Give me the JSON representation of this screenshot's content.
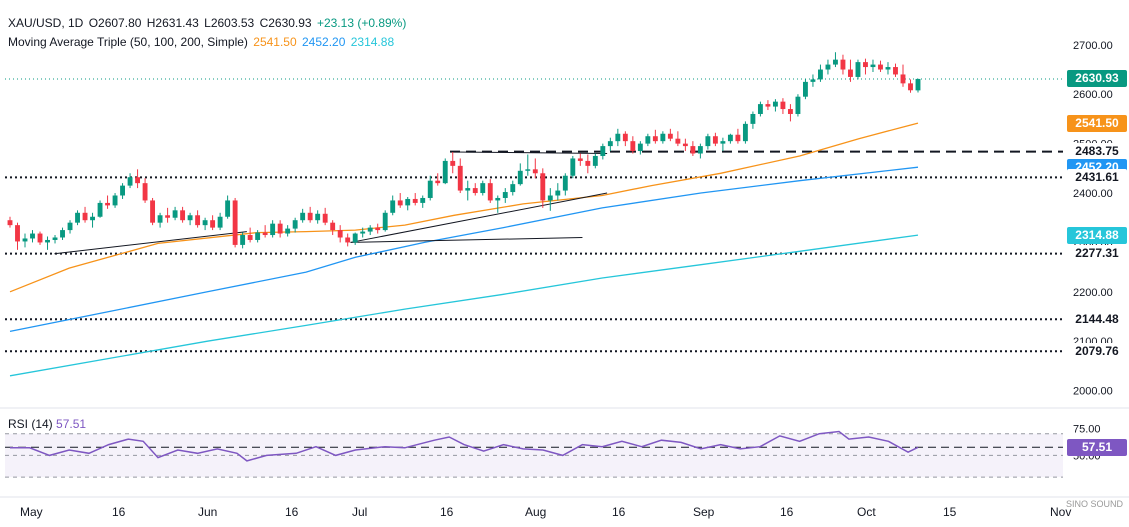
{
  "header": {
    "symbol": "XAU/USD, 1D",
    "open": "O2607.80",
    "high": "H2631.43",
    "low": "L2603.53",
    "close": "C2630.93",
    "change": "+23.13 (+0.89%)",
    "indicator": "Moving Average Triple (50, 100, 200, Simple)",
    "ma50": "2541.50",
    "ma100": "2452.20",
    "ma200": "2314.88"
  },
  "rsi": {
    "label": "RSI (14)",
    "value": "57.51"
  },
  "colors": {
    "up": "#089981",
    "down": "#f23645",
    "ma50": "#f7931a",
    "ma100": "#2196f3",
    "ma200": "#26c6da",
    "rsi": "#7e57c2"
  },
  "watermark": "SINO SOUND",
  "chart_data": {
    "type": "candlestick",
    "title": "XAU/USD, 1D",
    "x_ticks": [
      "May",
      "16",
      "Jun",
      "16",
      "Jul",
      "16",
      "Aug",
      "16",
      "Sep",
      "16",
      "Oct",
      "15",
      "Nov"
    ],
    "price_ticks": [
      "2700.00",
      "2600.00",
      "2500.00",
      "2400.00",
      "2300.00",
      "2200.00",
      "2100.00",
      "2000.00"
    ],
    "rsi_ticks": [
      "75.00",
      "50.00"
    ],
    "price_range": [
      1975,
      2730
    ],
    "rsi_range": [
      20,
      90
    ],
    "price_labels": [
      {
        "value": 2630.93,
        "text": "2630.93",
        "kind": "last"
      },
      {
        "value": 2541.5,
        "text": "2541.50",
        "kind": "ma50"
      },
      {
        "value": 2483.75,
        "text": "2483.75",
        "kind": "level"
      },
      {
        "value": 2452.2,
        "text": "2452.20",
        "kind": "ma100"
      },
      {
        "value": 2431.61,
        "text": "2431.61",
        "kind": "level"
      },
      {
        "value": 2314.88,
        "text": "2314.88",
        "kind": "ma200"
      },
      {
        "value": 2277.31,
        "text": "2277.31",
        "kind": "level"
      },
      {
        "value": 2144.48,
        "text": "2144.48",
        "kind": "level"
      },
      {
        "value": 2079.76,
        "text": "2079.76",
        "kind": "level"
      }
    ],
    "horizontal_levels": [
      {
        "value": 2431.61,
        "style": "dotted"
      },
      {
        "value": 2277.31,
        "style": "dotted"
      },
      {
        "value": 2144.48,
        "style": "dotted"
      },
      {
        "value": 2079.76,
        "style": "dotted"
      },
      {
        "value": 2483.75,
        "style": "dashed"
      },
      {
        "value": 2630.93,
        "style": "last"
      }
    ],
    "candles": [
      {
        "o": 2345,
        "h": 2352,
        "l": 2330,
        "c": 2335
      },
      {
        "o": 2335,
        "h": 2340,
        "l": 2285,
        "c": 2302
      },
      {
        "o": 2302,
        "h": 2318,
        "l": 2290,
        "c": 2308
      },
      {
        "o": 2308,
        "h": 2325,
        "l": 2300,
        "c": 2318
      },
      {
        "o": 2318,
        "h": 2322,
        "l": 2295,
        "c": 2300
      },
      {
        "o": 2300,
        "h": 2312,
        "l": 2285,
        "c": 2305
      },
      {
        "o": 2305,
        "h": 2315,
        "l": 2298,
        "c": 2310
      },
      {
        "o": 2310,
        "h": 2330,
        "l": 2305,
        "c": 2325
      },
      {
        "o": 2325,
        "h": 2345,
        "l": 2318,
        "c": 2340
      },
      {
        "o": 2340,
        "h": 2365,
        "l": 2335,
        "c": 2360
      },
      {
        "o": 2360,
        "h": 2372,
        "l": 2340,
        "c": 2345
      },
      {
        "o": 2345,
        "h": 2360,
        "l": 2330,
        "c": 2352
      },
      {
        "o": 2352,
        "h": 2385,
        "l": 2350,
        "c": 2380
      },
      {
        "o": 2380,
        "h": 2395,
        "l": 2368,
        "c": 2375
      },
      {
        "o": 2375,
        "h": 2400,
        "l": 2370,
        "c": 2395
      },
      {
        "o": 2395,
        "h": 2420,
        "l": 2388,
        "c": 2415
      },
      {
        "o": 2415,
        "h": 2440,
        "l": 2410,
        "c": 2432
      },
      {
        "o": 2432,
        "h": 2448,
        "l": 2410,
        "c": 2420
      },
      {
        "o": 2420,
        "h": 2430,
        "l": 2380,
        "c": 2385
      },
      {
        "o": 2385,
        "h": 2390,
        "l": 2335,
        "c": 2340
      },
      {
        "o": 2340,
        "h": 2360,
        "l": 2330,
        "c": 2355
      },
      {
        "o": 2355,
        "h": 2370,
        "l": 2340,
        "c": 2350
      },
      {
        "o": 2350,
        "h": 2372,
        "l": 2345,
        "c": 2365
      },
      {
        "o": 2365,
        "h": 2372,
        "l": 2340,
        "c": 2345
      },
      {
        "o": 2345,
        "h": 2360,
        "l": 2335,
        "c": 2355
      },
      {
        "o": 2355,
        "h": 2365,
        "l": 2330,
        "c": 2335
      },
      {
        "o": 2335,
        "h": 2350,
        "l": 2325,
        "c": 2345
      },
      {
        "o": 2345,
        "h": 2355,
        "l": 2325,
        "c": 2330
      },
      {
        "o": 2330,
        "h": 2360,
        "l": 2325,
        "c": 2352
      },
      {
        "o": 2352,
        "h": 2395,
        "l": 2348,
        "c": 2385
      },
      {
        "o": 2385,
        "h": 2390,
        "l": 2290,
        "c": 2295
      },
      {
        "o": 2295,
        "h": 2320,
        "l": 2288,
        "c": 2315
      },
      {
        "o": 2315,
        "h": 2330,
        "l": 2300,
        "c": 2305
      },
      {
        "o": 2305,
        "h": 2325,
        "l": 2300,
        "c": 2320
      },
      {
        "o": 2320,
        "h": 2335,
        "l": 2310,
        "c": 2315
      },
      {
        "o": 2315,
        "h": 2345,
        "l": 2310,
        "c": 2338
      },
      {
        "o": 2338,
        "h": 2345,
        "l": 2310,
        "c": 2318
      },
      {
        "o": 2318,
        "h": 2335,
        "l": 2312,
        "c": 2328
      },
      {
        "o": 2328,
        "h": 2350,
        "l": 2320,
        "c": 2345
      },
      {
        "o": 2345,
        "h": 2368,
        "l": 2340,
        "c": 2360
      },
      {
        "o": 2360,
        "h": 2372,
        "l": 2340,
        "c": 2345
      },
      {
        "o": 2345,
        "h": 2365,
        "l": 2338,
        "c": 2358
      },
      {
        "o": 2358,
        "h": 2370,
        "l": 2335,
        "c": 2340
      },
      {
        "o": 2340,
        "h": 2345,
        "l": 2315,
        "c": 2325
      },
      {
        "o": 2325,
        "h": 2335,
        "l": 2300,
        "c": 2310
      },
      {
        "o": 2310,
        "h": 2318,
        "l": 2292,
        "c": 2300
      },
      {
        "o": 2300,
        "h": 2320,
        "l": 2295,
        "c": 2318
      },
      {
        "o": 2318,
        "h": 2330,
        "l": 2310,
        "c": 2322
      },
      {
        "o": 2322,
        "h": 2335,
        "l": 2315,
        "c": 2330
      },
      {
        "o": 2330,
        "h": 2338,
        "l": 2318,
        "c": 2325
      },
      {
        "o": 2325,
        "h": 2365,
        "l": 2322,
        "c": 2360
      },
      {
        "o": 2360,
        "h": 2395,
        "l": 2355,
        "c": 2385
      },
      {
        "o": 2385,
        "h": 2400,
        "l": 2370,
        "c": 2375
      },
      {
        "o": 2375,
        "h": 2392,
        "l": 2365,
        "c": 2388
      },
      {
        "o": 2388,
        "h": 2400,
        "l": 2375,
        "c": 2380
      },
      {
        "o": 2380,
        "h": 2395,
        "l": 2370,
        "c": 2390
      },
      {
        "o": 2390,
        "h": 2435,
        "l": 2385,
        "c": 2425
      },
      {
        "o": 2425,
        "h": 2440,
        "l": 2415,
        "c": 2420
      },
      {
        "o": 2420,
        "h": 2470,
        "l": 2418,
        "c": 2465
      },
      {
        "o": 2465,
        "h": 2483,
        "l": 2440,
        "c": 2455
      },
      {
        "o": 2455,
        "h": 2470,
        "l": 2400,
        "c": 2405
      },
      {
        "o": 2405,
        "h": 2425,
        "l": 2385,
        "c": 2410
      },
      {
        "o": 2410,
        "h": 2420,
        "l": 2395,
        "c": 2400
      },
      {
        "o": 2400,
        "h": 2425,
        "l": 2395,
        "c": 2420
      },
      {
        "o": 2420,
        "h": 2428,
        "l": 2380,
        "c": 2385
      },
      {
        "o": 2385,
        "h": 2395,
        "l": 2360,
        "c": 2390
      },
      {
        "o": 2390,
        "h": 2410,
        "l": 2380,
        "c": 2402
      },
      {
        "o": 2402,
        "h": 2425,
        "l": 2395,
        "c": 2418
      },
      {
        "o": 2418,
        "h": 2460,
        "l": 2415,
        "c": 2445
      },
      {
        "o": 2445,
        "h": 2478,
        "l": 2435,
        "c": 2448
      },
      {
        "o": 2448,
        "h": 2470,
        "l": 2430,
        "c": 2440
      },
      {
        "o": 2440,
        "h": 2450,
        "l": 2370,
        "c": 2385
      },
      {
        "o": 2385,
        "h": 2410,
        "l": 2364,
        "c": 2395
      },
      {
        "o": 2395,
        "h": 2420,
        "l": 2385,
        "c": 2405
      },
      {
        "o": 2405,
        "h": 2440,
        "l": 2395,
        "c": 2435
      },
      {
        "o": 2435,
        "h": 2475,
        "l": 2430,
        "c": 2470
      },
      {
        "o": 2470,
        "h": 2480,
        "l": 2455,
        "c": 2465
      },
      {
        "o": 2465,
        "h": 2478,
        "l": 2440,
        "c": 2455
      },
      {
        "o": 2455,
        "h": 2480,
        "l": 2450,
        "c": 2475
      },
      {
        "o": 2475,
        "h": 2500,
        "l": 2468,
        "c": 2495
      },
      {
        "o": 2495,
        "h": 2512,
        "l": 2485,
        "c": 2505
      },
      {
        "o": 2505,
        "h": 2530,
        "l": 2495,
        "c": 2520
      },
      {
        "o": 2520,
        "h": 2525,
        "l": 2495,
        "c": 2505
      },
      {
        "o": 2505,
        "h": 2515,
        "l": 2480,
        "c": 2485
      },
      {
        "o": 2485,
        "h": 2505,
        "l": 2478,
        "c": 2500
      },
      {
        "o": 2500,
        "h": 2520,
        "l": 2495,
        "c": 2515
      },
      {
        "o": 2515,
        "h": 2528,
        "l": 2500,
        "c": 2505
      },
      {
        "o": 2505,
        "h": 2525,
        "l": 2500,
        "c": 2520
      },
      {
        "o": 2520,
        "h": 2530,
        "l": 2505,
        "c": 2510
      },
      {
        "o": 2510,
        "h": 2525,
        "l": 2495,
        "c": 2500
      },
      {
        "o": 2500,
        "h": 2510,
        "l": 2485,
        "c": 2495
      },
      {
        "o": 2495,
        "h": 2505,
        "l": 2475,
        "c": 2480
      },
      {
        "o": 2480,
        "h": 2500,
        "l": 2470,
        "c": 2495
      },
      {
        "o": 2495,
        "h": 2520,
        "l": 2488,
        "c": 2515
      },
      {
        "o": 2515,
        "h": 2522,
        "l": 2495,
        "c": 2500
      },
      {
        "o": 2500,
        "h": 2512,
        "l": 2485,
        "c": 2505
      },
      {
        "o": 2505,
        "h": 2520,
        "l": 2500,
        "c": 2518
      },
      {
        "o": 2518,
        "h": 2530,
        "l": 2500,
        "c": 2505
      },
      {
        "o": 2505,
        "h": 2545,
        "l": 2500,
        "c": 2540
      },
      {
        "o": 2540,
        "h": 2565,
        "l": 2530,
        "c": 2560
      },
      {
        "o": 2560,
        "h": 2585,
        "l": 2555,
        "c": 2580
      },
      {
        "o": 2580,
        "h": 2588,
        "l": 2568,
        "c": 2575
      },
      {
        "o": 2575,
        "h": 2590,
        "l": 2565,
        "c": 2585
      },
      {
        "o": 2585,
        "h": 2592,
        "l": 2560,
        "c": 2570
      },
      {
        "o": 2570,
        "h": 2580,
        "l": 2545,
        "c": 2560
      },
      {
        "o": 2560,
        "h": 2600,
        "l": 2555,
        "c": 2595
      },
      {
        "o": 2595,
        "h": 2630,
        "l": 2590,
        "c": 2625
      },
      {
        "o": 2625,
        "h": 2640,
        "l": 2615,
        "c": 2630
      },
      {
        "o": 2630,
        "h": 2660,
        "l": 2625,
        "c": 2650
      },
      {
        "o": 2650,
        "h": 2670,
        "l": 2640,
        "c": 2660
      },
      {
        "o": 2660,
        "h": 2685,
        "l": 2655,
        "c": 2670
      },
      {
        "o": 2670,
        "h": 2680,
        "l": 2640,
        "c": 2650
      },
      {
        "o": 2650,
        "h": 2670,
        "l": 2625,
        "c": 2635
      },
      {
        "o": 2635,
        "h": 2670,
        "l": 2630,
        "c": 2665
      },
      {
        "o": 2665,
        "h": 2672,
        "l": 2640,
        "c": 2655
      },
      {
        "o": 2655,
        "h": 2670,
        "l": 2645,
        "c": 2660
      },
      {
        "o": 2660,
        "h": 2668,
        "l": 2645,
        "c": 2650
      },
      {
        "o": 2650,
        "h": 2665,
        "l": 2640,
        "c": 2655
      },
      {
        "o": 2655,
        "h": 2662,
        "l": 2635,
        "c": 2640
      },
      {
        "o": 2640,
        "h": 2660,
        "l": 2615,
        "c": 2622
      },
      {
        "o": 2622,
        "h": 2630,
        "l": 2603,
        "c": 2608
      },
      {
        "o": 2607.8,
        "h": 2631.43,
        "l": 2603.53,
        "c": 2630.93
      }
    ],
    "series": [
      {
        "name": "MA 50",
        "color": "#f7931a",
        "values": [
          [
            0,
            2200
          ],
          [
            60,
            2248
          ],
          [
            150,
            2298
          ],
          [
            250,
            2320
          ],
          [
            300,
            2322
          ],
          [
            350,
            2325
          ],
          [
            400,
            2335
          ],
          [
            450,
            2355
          ],
          [
            520,
            2378
          ],
          [
            600,
            2395
          ],
          [
            650,
            2415
          ],
          [
            720,
            2440
          ],
          [
            800,
            2475
          ],
          [
            860,
            2510
          ],
          [
            920,
            2541.5
          ]
        ]
      },
      {
        "name": "MA 100",
        "color": "#2196f3",
        "values": [
          [
            0,
            2120
          ],
          [
            100,
            2160
          ],
          [
            200,
            2200
          ],
          [
            300,
            2240
          ],
          [
            350,
            2270
          ],
          [
            420,
            2300
          ],
          [
            500,
            2330
          ],
          [
            600,
            2370
          ],
          [
            700,
            2400
          ],
          [
            800,
            2425
          ],
          [
            920,
            2452.2
          ]
        ]
      },
      {
        "name": "MA 200",
        "color": "#26c6da",
        "values": [
          [
            0,
            2030
          ],
          [
            100,
            2065
          ],
          [
            200,
            2100
          ],
          [
            300,
            2132
          ],
          [
            400,
            2165
          ],
          [
            500,
            2195
          ],
          [
            600,
            2228
          ],
          [
            700,
            2255
          ],
          [
            800,
            2282
          ],
          [
            920,
            2314.88
          ]
        ]
      }
    ],
    "trendlines": [
      {
        "from": [
          45,
          2277
        ],
        "to": [
          240,
          2322
        ]
      },
      {
        "from": [
          345,
          2300
        ],
        "to": [
          580,
          2310
        ]
      },
      {
        "from": [
          345,
          2300
        ],
        "to": [
          605,
          2400
        ]
      },
      {
        "from": [
          450,
          2483
        ],
        "to": [
          605,
          2480
        ]
      }
    ],
    "rsi_series": [
      [
        0,
        57
      ],
      [
        20,
        57
      ],
      [
        40,
        50
      ],
      [
        60,
        55
      ],
      [
        80,
        52
      ],
      [
        100,
        60
      ],
      [
        120,
        65
      ],
      [
        135,
        63
      ],
      [
        150,
        48
      ],
      [
        170,
        55
      ],
      [
        190,
        52
      ],
      [
        210,
        56
      ],
      [
        230,
        52
      ],
      [
        240,
        45
      ],
      [
        260,
        50
      ],
      [
        290,
        52
      ],
      [
        310,
        58
      ],
      [
        330,
        50
      ],
      [
        350,
        55
      ],
      [
        380,
        58
      ],
      [
        400,
        57
      ],
      [
        430,
        64
      ],
      [
        445,
        67
      ],
      [
        460,
        60
      ],
      [
        480,
        54
      ],
      [
        500,
        60
      ],
      [
        520,
        56
      ],
      [
        540,
        55
      ],
      [
        560,
        50
      ],
      [
        580,
        60
      ],
      [
        600,
        58
      ],
      [
        620,
        63
      ],
      [
        640,
        58
      ],
      [
        660,
        64
      ],
      [
        680,
        62
      ],
      [
        700,
        56
      ],
      [
        720,
        60
      ],
      [
        740,
        56
      ],
      [
        760,
        58
      ],
      [
        780,
        68
      ],
      [
        800,
        63
      ],
      [
        820,
        70
      ],
      [
        840,
        72
      ],
      [
        850,
        65
      ],
      [
        870,
        67
      ],
      [
        890,
        63
      ],
      [
        910,
        53
      ],
      [
        920,
        57.51
      ]
    ],
    "rsi_last": 57.51
  }
}
